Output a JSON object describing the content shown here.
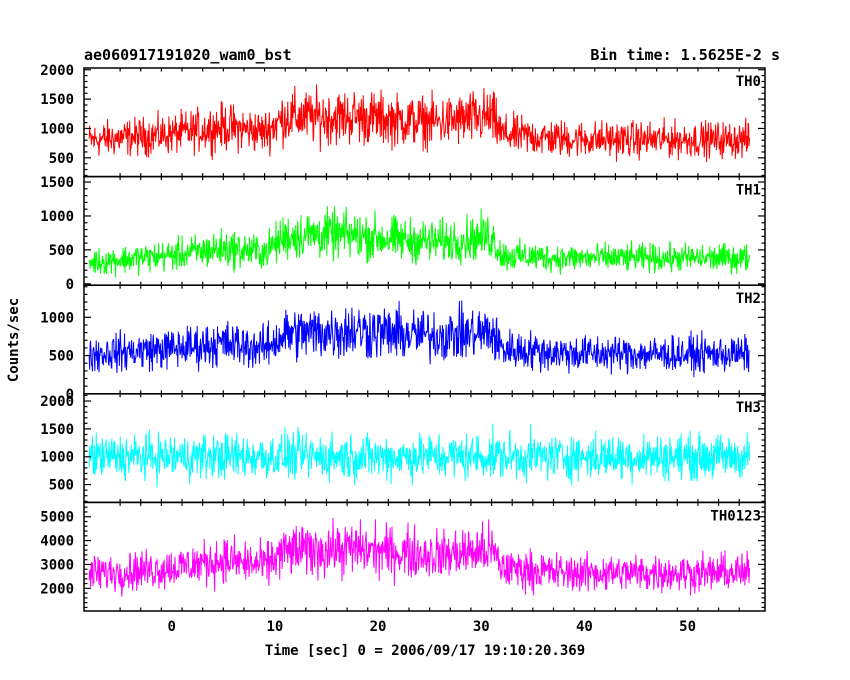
{
  "header": {
    "title": "ae060917191020_wam0_bst",
    "bin_time": "Bin time: 1.5625E-2 s"
  },
  "chart_data": {
    "type": "line",
    "title": "ae060917191020_wam0_bst",
    "bin_time_s": 0.015625,
    "xlabel": "Time [sec] 0 = 2006/09/17 19:10:20.369",
    "ylabel": "Counts/sec",
    "xlim": [
      -8.5,
      57.5
    ],
    "data_range_x": [
      -8,
      56
    ],
    "x_ticks": [
      0,
      10,
      20,
      30,
      40,
      50
    ],
    "x_tick_labels": [
      "0",
      "10",
      "20",
      "30",
      "40",
      "50"
    ],
    "grid": false,
    "panels": [
      {
        "name": "TH0",
        "color": "#ff0000",
        "ylim": [
          180,
          2030
        ],
        "y_ticks": [
          500,
          1000,
          1500,
          2000
        ],
        "y_tick_labels": [
          "500",
          "1000",
          "1500",
          "2000"
        ],
        "envelope": {
          "x": [
            -8,
            0,
            5,
            9,
            11,
            14,
            18,
            22,
            26,
            31,
            32,
            38,
            46,
            56
          ],
          "mean": [
            800,
            900,
            1030,
            940,
            1200,
            1190,
            1200,
            1140,
            1110,
            1200,
            900,
            820,
            810,
            810
          ],
          "spread": [
            420,
            470,
            560,
            500,
            640,
            650,
            660,
            620,
            600,
            680,
            480,
            440,
            430,
            430
          ]
        }
      },
      {
        "name": "TH1",
        "color": "#00ff00",
        "ylim": [
          -20,
          1580
        ],
        "y_ticks": [
          0,
          500,
          1000,
          1500
        ],
        "y_tick_labels": [
          "0",
          "500",
          "1000",
          "1500"
        ],
        "envelope": {
          "x": [
            -8,
            0,
            5,
            9,
            11,
            14,
            18,
            22,
            26,
            31,
            32,
            38,
            46,
            56
          ],
          "mean": [
            320,
            420,
            520,
            470,
            700,
            730,
            710,
            650,
            620,
            700,
            420,
            380,
            380,
            380
          ],
          "spread": [
            270,
            320,
            400,
            360,
            480,
            500,
            500,
            460,
            440,
            490,
            320,
            290,
            290,
            290
          ]
        }
      },
      {
        "name": "TH2",
        "color": "#0000ff",
        "ylim": [
          0,
          1420
        ],
        "y_ticks": [
          0,
          500,
          1000
        ],
        "y_tick_labels": [
          "0",
          "500",
          "1000"
        ],
        "envelope": {
          "x": [
            -8,
            0,
            5,
            9,
            11,
            14,
            18,
            22,
            26,
            31,
            32,
            38,
            46,
            56
          ],
          "mean": [
            520,
            590,
            660,
            600,
            780,
            800,
            830,
            780,
            760,
            800,
            590,
            530,
            520,
            520
          ],
          "spread": [
            330,
            370,
            420,
            380,
            480,
            500,
            520,
            490,
            470,
            500,
            370,
            340,
            330,
            330
          ]
        }
      },
      {
        "name": "TH3",
        "color": "#00ffff",
        "ylim": [
          180,
          2130
        ],
        "y_ticks": [
          500,
          1000,
          1500,
          2000
        ],
        "y_tick_labels": [
          "500",
          "1000",
          "1500",
          "2000"
        ],
        "envelope": {
          "x": [
            -8,
            0,
            10,
            20,
            30,
            40,
            56
          ],
          "mean": [
            1000,
            1000,
            1010,
            1000,
            1010,
            1000,
            1000
          ],
          "spread": [
            560,
            570,
            580,
            570,
            580,
            570,
            560
          ]
        }
      },
      {
        "name": "TH0123",
        "color": "#ff00ff",
        "ylim": [
          1050,
          5600
        ],
        "y_ticks": [
          2000,
          3000,
          4000,
          5000
        ],
        "y_tick_labels": [
          "2000",
          "3000",
          "4000",
          "5000"
        ],
        "envelope": {
          "x": [
            -8,
            0,
            5,
            9,
            11,
            14,
            18,
            22,
            26,
            31,
            32,
            38,
            46,
            56
          ],
          "mean": [
            2600,
            2850,
            3200,
            2950,
            3550,
            3600,
            3650,
            3500,
            3400,
            3600,
            2850,
            2650,
            2650,
            2650
          ],
          "spread": [
            1100,
            1200,
            1350,
            1250,
            1500,
            1550,
            1550,
            1500,
            1450,
            1550,
            1200,
            1100,
            1100,
            1100
          ]
        }
      }
    ]
  }
}
